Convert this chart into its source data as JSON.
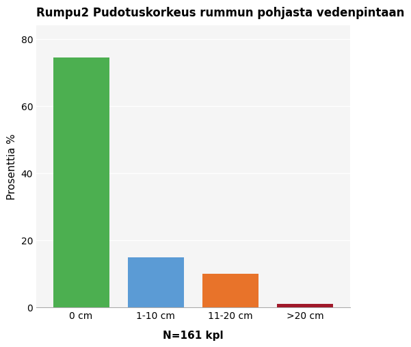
{
  "title": "Rumpu2 Pudotuskorkeus rummun pohjasta vedenpintaan",
  "categories": [
    "0 cm",
    "1-10 cm",
    "11-20 cm",
    ">20 cm"
  ],
  "values": [
    74.5,
    15.0,
    10.0,
    1.0
  ],
  "bar_colors": [
    "#4caf50",
    "#5b9bd5",
    "#e8732a",
    "#a0192a"
  ],
  "ylabel": "Prosenttia %",
  "xlabel": "N=161 kpl",
  "ylim": [
    0,
    84
  ],
  "yticks": [
    0,
    20,
    40,
    60,
    80
  ],
  "plot_bg_color": "#f5f5f5",
  "fig_bg_color": "#ffffff",
  "grid_color": "#ffffff",
  "title_fontsize": 12,
  "label_fontsize": 11,
  "tick_fontsize": 10,
  "xlabel_fontsize": 11,
  "xlabel_fontweight": "bold",
  "bar_width": 0.75
}
